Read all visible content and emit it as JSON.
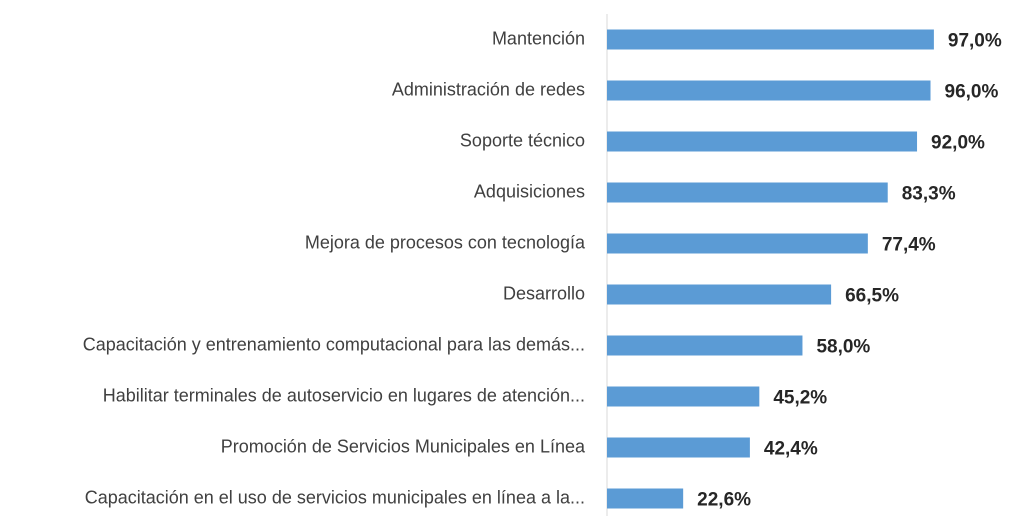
{
  "chart_data": {
    "type": "bar",
    "orientation": "horizontal",
    "categories": [
      "Mantención",
      "Administración de redes",
      "Soporte técnico",
      "Adquisiciones",
      "Mejora de procesos con tecnología",
      "Desarrollo",
      "Capacitación y entrenamiento computacional para las demás...",
      "Habilitar terminales de autoservicio en lugares de atención...",
      "Promoción de Servicios Municipales en Línea",
      "Capacitación en el uso de servicios municipales en línea a la..."
    ],
    "values": [
      97.0,
      96.0,
      92.0,
      83.3,
      77.4,
      66.5,
      58.0,
      45.2,
      42.4,
      22.6
    ],
    "value_labels": [
      "97,0%",
      "96,0%",
      "92,0%",
      "83,3%",
      "77,4%",
      "66,5%",
      "58,0%",
      "45,2%",
      "42,4%",
      "22,6%"
    ],
    "color": "#5b9bd5",
    "xlim": [
      0,
      100
    ]
  }
}
